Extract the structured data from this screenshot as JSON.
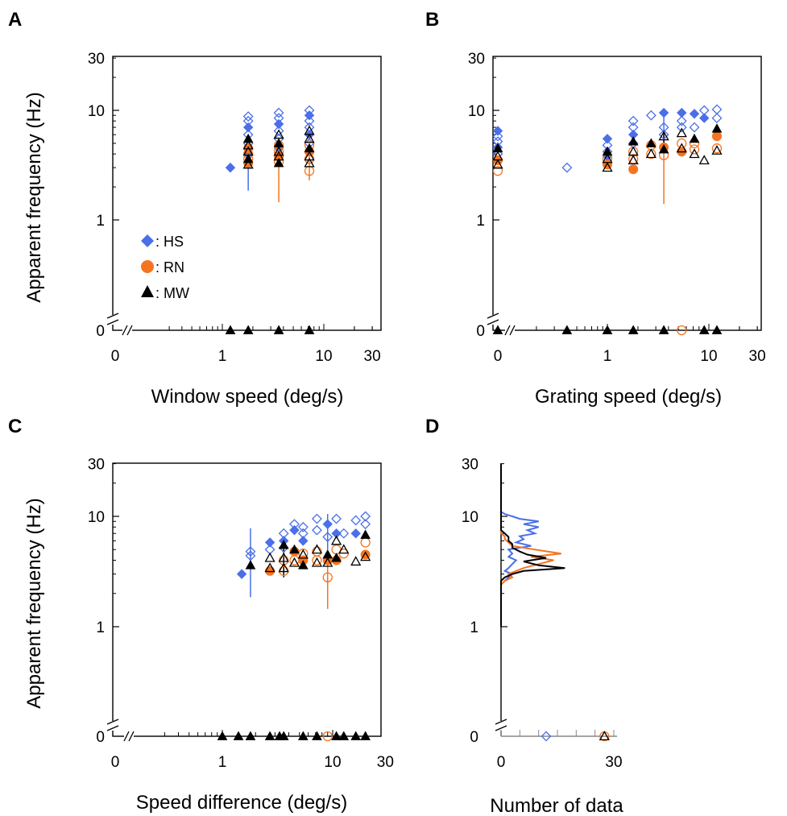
{
  "figure": {
    "legend": [
      {
        "symbol": "diamond",
        "label": ": HS",
        "color": "#4a6fe8"
      },
      {
        "symbol": "circle",
        "label": ": RN",
        "color": "#f57421"
      },
      {
        "symbol": "triangle",
        "label": ": MW",
        "color": "#000000"
      }
    ]
  },
  "chart_data": [
    {
      "panel": "A",
      "type": "scatter",
      "xscale": "log-with-zero-break",
      "yscale": "log-with-zero-break",
      "xlabel": "Window speed (deg/s)",
      "ylabel": "Apparent frequency (Hz)",
      "xticks": [
        "0",
        "1",
        "10",
        "30"
      ],
      "yticks": [
        "0",
        "1",
        "10",
        "30"
      ],
      "xlim": [
        0,
        30
      ],
      "ylim": [
        0,
        30
      ],
      "series": [
        {
          "name": "HS",
          "marker": "diamond",
          "color": "#4a6fe8",
          "x": [
            1.2,
            1.8,
            1.8,
            1.8,
            1.8,
            1.8,
            1.8,
            3.6,
            3.6,
            3.6,
            3.6,
            3.6,
            3.6,
            3.6,
            7.2,
            7.2,
            7.2,
            7.2,
            7.2,
            7.2,
            7.2
          ],
          "y": [
            3.0,
            8.8,
            8.0,
            7.0,
            6.0,
            5.0,
            4.0,
            9.5,
            8.5,
            7.5,
            6.5,
            5.5,
            4.5,
            3.8,
            10.0,
            9.0,
            8.0,
            7.0,
            6.0,
            5.0,
            4.2
          ],
          "errorbars": [
            {
              "x": 1.8,
              "low": 1.85,
              "high": 5.5
            }
          ]
        },
        {
          "name": "RN",
          "marker": "circle",
          "color": "#f57421",
          "x": [
            1.8,
            1.8,
            1.8,
            1.8,
            3.6,
            3.6,
            3.6,
            3.6,
            7.2,
            7.2,
            7.2,
            7.2
          ],
          "y": [
            4.5,
            4.0,
            3.6,
            3.3,
            4.8,
            4.2,
            3.8,
            3.4,
            4.8,
            4.2,
            3.6,
            2.8
          ],
          "errorbars": [
            {
              "x": 3.6,
              "low": 1.45,
              "high": 4.8
            },
            {
              "x": 7.2,
              "low": 2.3,
              "high": 4.0
            }
          ]
        },
        {
          "name": "MW",
          "marker": "triangle",
          "color": "#000000",
          "x": [
            1.8,
            1.8,
            1.8,
            1.8,
            1.8,
            3.6,
            3.6,
            3.6,
            3.6,
            3.6,
            7.2,
            7.2,
            7.2,
            7.2,
            7.2
          ],
          "y": [
            5.5,
            4.8,
            4.2,
            3.6,
            3.2,
            6.0,
            5.0,
            4.2,
            3.8,
            3.3,
            6.5,
            5.5,
            4.5,
            3.8,
            3.3
          ],
          "errorbars": []
        }
      ],
      "zero_markers": [
        {
          "x": 1.2,
          "series": "MW"
        },
        {
          "x": 1.8,
          "series": "MW"
        },
        {
          "x": 3.6,
          "series": "MW"
        },
        {
          "x": 7.2,
          "series": "MW"
        }
      ]
    },
    {
      "panel": "B",
      "type": "scatter",
      "xscale": "log-with-zero-break",
      "yscale": "log-with-zero-break",
      "xlabel": "Grating speed (deg/s)",
      "ylabel": "",
      "xticks": [
        "0",
        "1",
        "10",
        "30"
      ],
      "yticks": [
        "0",
        "1",
        "10",
        "30"
      ],
      "xlim": [
        0,
        30
      ],
      "ylim": [
        0,
        30
      ],
      "series": [
        {
          "name": "HS",
          "marker": "diamond",
          "color": "#4a6fe8",
          "x": [
            0,
            0,
            0,
            0,
            0,
            0.4,
            1.0,
            1.0,
            1.0,
            1.0,
            1.8,
            1.8,
            1.8,
            1.8,
            2.7,
            3.6,
            3.6,
            3.6,
            5.4,
            5.4,
            5.4,
            7.2,
            7.2,
            9.0,
            9.0,
            12.0,
            12.0
          ],
          "y": [
            6.5,
            5.8,
            5.2,
            4.6,
            4.0,
            3.0,
            5.5,
            4.8,
            4.2,
            3.8,
            8.0,
            7.0,
            6.0,
            5.0,
            9.0,
            9.5,
            7.0,
            6.0,
            9.5,
            8.0,
            7.0,
            9.3,
            7.0,
            10.0,
            8.5,
            10.2,
            8.5
          ],
          "errorbars": [
            {
              "x": 3.6,
              "low": 4.5,
              "high": 10.0
            }
          ]
        },
        {
          "name": "RN",
          "marker": "circle",
          "color": "#f57421",
          "x": [
            0,
            0,
            1.0,
            1.0,
            1.8,
            1.8,
            1.8,
            2.7,
            2.7,
            3.6,
            3.6,
            5.4,
            5.4,
            7.2,
            7.2,
            12.0,
            12.0
          ],
          "y": [
            3.5,
            2.8,
            3.6,
            3.2,
            4.2,
            3.6,
            2.9,
            4.8,
            4.0,
            4.6,
            3.9,
            5.0,
            4.2,
            5.0,
            4.4,
            5.8,
            4.5
          ],
          "errorbars": [
            {
              "x": 3.6,
              "low": 1.4,
              "high": 4.6
            }
          ]
        },
        {
          "name": "MW",
          "marker": "triangle",
          "color": "#000000",
          "x": [
            0,
            0,
            0,
            1.0,
            1.0,
            1.0,
            1.8,
            1.8,
            1.8,
            2.7,
            2.7,
            3.6,
            3.6,
            5.4,
            5.4,
            7.2,
            7.2,
            9.0,
            12.0,
            12.0
          ],
          "y": [
            4.5,
            3.8,
            3.2,
            4.2,
            3.6,
            3.0,
            5.2,
            4.2,
            3.5,
            5.0,
            4.0,
            5.8,
            4.4,
            6.2,
            4.5,
            5.5,
            4.0,
            3.5,
            6.8,
            4.3
          ],
          "errorbars": [
            {
              "x": 3.6,
              "low": 4.8,
              "high": 6.6
            }
          ]
        }
      ],
      "zero_markers": [
        {
          "x": 0,
          "series": "MW"
        },
        {
          "x": 0.4,
          "series": "MW"
        },
        {
          "x": 1.0,
          "series": "MW"
        },
        {
          "x": 1.8,
          "series": "MW"
        },
        {
          "x": 3.6,
          "series": "MW"
        },
        {
          "x": 5.4,
          "series": "RN"
        },
        {
          "x": 9.0,
          "series": "MW"
        },
        {
          "x": 12.0,
          "series": "MW"
        }
      ]
    },
    {
      "panel": "C",
      "type": "scatter",
      "xscale": "log-with-zero-break",
      "yscale": "log-with-zero-break",
      "xlabel": "Speed difference (deg/s)",
      "ylabel": "Apparent frequency (Hz)",
      "xticks": [
        "0",
        "1",
        "10",
        "30"
      ],
      "yticks": [
        "0",
        "1",
        "10",
        "30"
      ],
      "xlim": [
        0,
        30
      ],
      "ylim": [
        0,
        30
      ],
      "series": [
        {
          "name": "HS",
          "marker": "diamond",
          "color": "#4a6fe8",
          "x": [
            1.5,
            1.8,
            1.8,
            2.7,
            2.7,
            3.6,
            3.6,
            3.6,
            4.5,
            4.5,
            5.4,
            5.4,
            5.4,
            7.2,
            7.2,
            9.0,
            9.0,
            10.8,
            10.8,
            12.6,
            16.2,
            16.2,
            19.8,
            19.8
          ],
          "y": [
            3.0,
            4.8,
            4.4,
            5.8,
            5.0,
            7.0,
            6.0,
            5.2,
            8.5,
            7.5,
            8.0,
            7.0,
            6.0,
            9.5,
            7.5,
            8.5,
            6.5,
            9.5,
            7.0,
            7.0,
            9.2,
            7.0,
            10.0,
            8.5
          ],
          "errorbars": [
            {
              "x": 1.8,
              "low": 1.85,
              "high": 7.8
            },
            {
              "x": 9.0,
              "low": 5.0,
              "high": 10.5
            }
          ]
        },
        {
          "name": "RN",
          "marker": "circle",
          "color": "#f57421",
          "x": [
            2.7,
            3.6,
            3.6,
            4.5,
            4.5,
            5.4,
            5.4,
            7.2,
            7.2,
            9.0,
            9.0,
            10.8,
            10.8,
            12.6,
            19.8,
            19.8
          ],
          "y": [
            3.2,
            4.0,
            3.2,
            4.8,
            4.0,
            4.6,
            4.0,
            4.8,
            4.0,
            4.0,
            2.8,
            5.0,
            4.0,
            4.6,
            5.8,
            4.5
          ],
          "errorbars": [
            {
              "x": 9.0,
              "low": 1.45,
              "high": 4.0
            }
          ]
        },
        {
          "name": "MW",
          "marker": "triangle",
          "color": "#000000",
          "x": [
            1.8,
            2.7,
            2.7,
            3.6,
            3.6,
            3.6,
            4.5,
            4.5,
            5.4,
            5.4,
            7.2,
            7.2,
            9.0,
            9.0,
            10.8,
            10.8,
            12.6,
            16.2,
            19.8,
            19.8
          ],
          "y": [
            3.6,
            4.2,
            3.4,
            5.5,
            4.2,
            3.4,
            5.0,
            3.8,
            4.5,
            3.6,
            5.0,
            3.8,
            4.5,
            3.8,
            6.0,
            4.2,
            5.0,
            3.9,
            6.8,
            4.3
          ],
          "errorbars": [
            {
              "x": 3.6,
              "low": 2.8,
              "high": 5.5
            }
          ]
        }
      ],
      "zero_markers": [
        {
          "x": 1.0,
          "series": "MW"
        },
        {
          "x": 1.4,
          "series": "MW"
        },
        {
          "x": 1.8,
          "series": "MW"
        },
        {
          "x": 2.7,
          "series": "MW"
        },
        {
          "x": 3.3,
          "series": "MW"
        },
        {
          "x": 3.6,
          "series": "MW"
        },
        {
          "x": 5.4,
          "series": "MW"
        },
        {
          "x": 7.2,
          "series": "MW"
        },
        {
          "x": 9.0,
          "series": "RN"
        },
        {
          "x": 10.8,
          "series": "MW"
        },
        {
          "x": 12.6,
          "series": "MW"
        },
        {
          "x": 16.2,
          "series": "MW"
        },
        {
          "x": 19.8,
          "series": "MW"
        }
      ]
    },
    {
      "panel": "D",
      "type": "line",
      "orientation": "horizontal-histogram",
      "yscale": "log-with-zero-break",
      "xlabel": "Number of data",
      "ylabel": "",
      "xticks": [
        "0",
        "30"
      ],
      "yticks": [
        "0",
        "1",
        "10",
        "30"
      ],
      "xlim": [
        0,
        30
      ],
      "ylim": [
        0,
        30
      ],
      "series": [
        {
          "name": "HS",
          "color": "#4a6fe8",
          "y": [
            1.0,
            2.4,
            2.6,
            2.8,
            3.0,
            3.2,
            3.4,
            3.7,
            4.0,
            4.3,
            4.6,
            5.0,
            5.4,
            5.8,
            6.2,
            6.6,
            7.0,
            7.5,
            8.0,
            8.5,
            9.0,
            9.5,
            10.0,
            10.5,
            11.0,
            15.0,
            30.0
          ],
          "values": [
            0,
            0,
            1,
            2,
            3,
            1,
            2,
            3,
            4,
            2,
            3,
            2,
            8,
            4,
            6,
            5,
            9,
            7,
            10,
            6,
            10,
            5,
            3,
            1,
            0,
            0,
            0
          ]
        },
        {
          "name": "RN",
          "color": "#f57421",
          "y": [
            1.0,
            2.4,
            2.6,
            2.8,
            3.0,
            3.2,
            3.4,
            3.7,
            4.0,
            4.3,
            4.6,
            5.0,
            5.4,
            5.8,
            6.2,
            6.6,
            7.0,
            8.0,
            30.0
          ],
          "values": [
            0,
            0,
            1,
            3,
            2,
            4,
            6,
            10,
            14,
            8,
            16,
            9,
            3,
            2,
            1,
            1,
            0,
            0,
            0
          ]
        },
        {
          "name": "MW",
          "color": "#000000",
          "y": [
            1.0,
            2.6,
            2.8,
            3.0,
            3.2,
            3.4,
            3.6,
            3.9,
            4.2,
            4.5,
            4.8,
            5.2,
            5.6,
            6.0,
            6.5,
            7.0,
            7.5,
            8.0,
            30.0
          ],
          "values": [
            0,
            0,
            1,
            3,
            6,
            17,
            10,
            6,
            12,
            7,
            5,
            3,
            3,
            2,
            2,
            1,
            0,
            0,
            0
          ]
        }
      ],
      "zero_markers": [
        {
          "x": 12,
          "series": "HS"
        },
        {
          "x": 27.5,
          "series": "RN"
        },
        {
          "x": 27.5,
          "series": "MW"
        }
      ]
    }
  ]
}
